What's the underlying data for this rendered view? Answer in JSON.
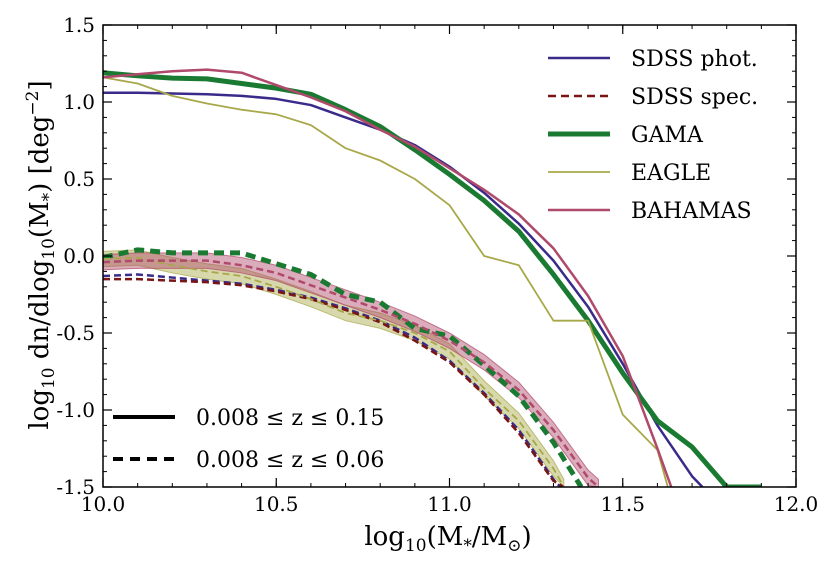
{
  "chart_data": {
    "type": "line",
    "title": "",
    "xlabel": "log10(M*/M⊙)",
    "ylabel": "log10 dn/dlog10(M*) [deg^-2]",
    "xlim": [
      10.0,
      12.0
    ],
    "ylim": [
      -1.5,
      1.5
    ],
    "xticks": [
      10.0,
      10.5,
      11.0,
      11.5,
      12.0
    ],
    "xtick_labels": [
      "10.0",
      "10.5",
      "11.0",
      "11.5",
      "12.0"
    ],
    "yticks": [
      -1.5,
      -1.0,
      -0.5,
      0.0,
      0.5,
      1.0,
      1.5
    ],
    "ytick_labels": [
      "-1.5",
      "-1.0",
      "-0.5",
      "0.0",
      "0.5",
      "1.0",
      "1.5"
    ],
    "xlabel_parts": {
      "pre": "log",
      "sub": "10",
      "mid1": "(M",
      "sub2": "*",
      "mid2": "/M",
      "sub3": "⊙",
      "post": ")"
    },
    "ylabel_parts": {
      "pre": "log",
      "sub": "10",
      "mid": " dn/dlog",
      "sub2": "10",
      "mid2": "(M",
      "sub3": "*",
      "mid3": ") [deg",
      "sup": "−2",
      "post": "]"
    },
    "legend": {
      "placement": "top-right",
      "entries": [
        {
          "label": "SDSS phot.",
          "color": "#3a2a8a",
          "style": "solid",
          "weight": "normal"
        },
        {
          "label": "SDSS spec.",
          "color": "#7a1515",
          "style": "dashed",
          "weight": "normal"
        },
        {
          "label": "GAMA",
          "color": "#1a7a32",
          "style": "solid",
          "weight": "thick"
        },
        {
          "label": "EAGLE",
          "color": "#a8a84a",
          "style": "solid",
          "weight": "thin"
        },
        {
          "label": "BAHAMAS",
          "color": "#b04a6a",
          "style": "solid",
          "weight": "normal"
        }
      ]
    },
    "style_legend": {
      "placement": "bottom-left",
      "entries": [
        {
          "label": "0.008 ≤ z ≤ 0.15",
          "style": "solid"
        },
        {
          "label": "0.008 ≤ z ≤ 0.06",
          "style": "dashed"
        }
      ]
    },
    "series": [
      {
        "name": "SDSS phot.",
        "sample": "0.008 ≤ z ≤ 0.15",
        "color": "#3a2a8a",
        "style": "solid",
        "weight": "normal",
        "x": [
          10.0,
          10.1,
          10.2,
          10.3,
          10.4,
          10.5,
          10.6,
          10.7,
          10.8,
          10.9,
          11.0,
          11.1,
          11.2,
          11.3,
          11.4,
          11.5,
          11.6,
          11.7,
          11.73
        ],
        "y": [
          1.06,
          1.06,
          1.055,
          1.05,
          1.04,
          1.02,
          0.98,
          0.9,
          0.82,
          0.72,
          0.58,
          0.41,
          0.21,
          -0.03,
          -0.33,
          -0.7,
          -1.1,
          -1.43,
          -1.5
        ]
      },
      {
        "name": "GAMA",
        "sample": "0.008 ≤ z ≤ 0.15",
        "color": "#1a7a32",
        "style": "solid",
        "weight": "thick",
        "x": [
          10.0,
          10.1,
          10.2,
          10.3,
          10.4,
          10.5,
          10.6,
          10.7,
          10.8,
          10.9,
          11.0,
          11.1,
          11.2,
          11.3,
          11.4,
          11.5,
          11.6,
          11.7,
          11.8,
          11.9
        ],
        "y": [
          1.19,
          1.17,
          1.155,
          1.15,
          1.12,
          1.09,
          1.05,
          0.95,
          0.84,
          0.69,
          0.53,
          0.36,
          0.16,
          -0.12,
          -0.42,
          -0.76,
          -1.07,
          -1.24,
          -1.5,
          -1.5
        ]
      },
      {
        "name": "EAGLE",
        "sample": "0.008 ≤ z ≤ 0.15",
        "color": "#a8a84a",
        "style": "solid",
        "weight": "thin",
        "x": [
          10.0,
          10.1,
          10.2,
          10.3,
          10.4,
          10.5,
          10.6,
          10.7,
          10.8,
          10.9,
          11.0,
          11.1,
          11.2,
          11.3,
          11.4,
          11.5,
          11.6,
          11.63
        ],
        "y": [
          1.16,
          1.12,
          1.04,
          0.99,
          0.95,
          0.92,
          0.85,
          0.7,
          0.62,
          0.5,
          0.33,
          0.0,
          -0.06,
          -0.42,
          -0.42,
          -1.03,
          -1.26,
          -1.5
        ]
      },
      {
        "name": "BAHAMAS",
        "sample": "0.008 ≤ z ≤ 0.15",
        "color": "#b04a6a",
        "style": "solid",
        "weight": "normal",
        "x": [
          10.0,
          10.1,
          10.2,
          10.3,
          10.4,
          10.5,
          10.6,
          10.7,
          10.8,
          10.9,
          11.0,
          11.1,
          11.2,
          11.3,
          11.4,
          11.5,
          11.6,
          11.64
        ],
        "y": [
          1.16,
          1.18,
          1.2,
          1.21,
          1.19,
          1.11,
          1.03,
          0.94,
          0.82,
          0.71,
          0.57,
          0.43,
          0.27,
          0.05,
          -0.26,
          -0.65,
          -1.25,
          -1.5
        ]
      },
      {
        "name": "SDSS phot.",
        "sample": "0.008 ≤ z ≤ 0.06",
        "color": "#3a2a8a",
        "style": "dashed",
        "weight": "normal",
        "x": [
          10.0,
          10.1,
          10.2,
          10.3,
          10.4,
          10.5,
          10.6,
          10.7,
          10.8,
          10.9,
          11.0,
          11.1,
          11.2,
          11.3,
          11.32
        ],
        "y": [
          -0.13,
          -0.12,
          -0.14,
          -0.16,
          -0.18,
          -0.22,
          -0.27,
          -0.34,
          -0.42,
          -0.53,
          -0.68,
          -0.89,
          -1.13,
          -1.45,
          -1.5
        ]
      },
      {
        "name": "SDSS spec.",
        "sample": "0.008 ≤ z ≤ 0.06",
        "color": "#7a1515",
        "style": "dashed",
        "weight": "normal",
        "x": [
          10.0,
          10.1,
          10.2,
          10.3,
          10.4,
          10.5,
          10.6,
          10.7,
          10.8,
          10.9,
          11.0,
          11.1,
          11.2,
          11.3,
          11.33
        ],
        "y": [
          -0.15,
          -0.15,
          -0.16,
          -0.17,
          -0.19,
          -0.23,
          -0.28,
          -0.35,
          -0.43,
          -0.55,
          -0.69,
          -0.9,
          -1.15,
          -1.46,
          -1.5
        ]
      },
      {
        "name": "GAMA",
        "sample": "0.008 ≤ z ≤ 0.06",
        "color": "#1a7a32",
        "style": "dashed",
        "weight": "thick",
        "x": [
          10.0,
          10.1,
          10.2,
          10.3,
          10.4,
          10.5,
          10.6,
          10.7,
          10.8,
          10.9,
          11.0,
          11.1,
          11.2,
          11.3,
          11.38
        ],
        "y": [
          -0.01,
          0.04,
          0.02,
          0.02,
          0.02,
          -0.05,
          -0.12,
          -0.25,
          -0.3,
          -0.47,
          -0.52,
          -0.71,
          -0.91,
          -1.21,
          -1.5
        ]
      },
      {
        "name": "EAGLE",
        "sample": "0.008 ≤ z ≤ 0.06",
        "color": "#a8a84a",
        "style": "dashed",
        "weight": "thin",
        "x": [
          10.0,
          10.1,
          10.2,
          10.3,
          10.4,
          10.5,
          10.6,
          10.7,
          10.8,
          10.9,
          11.0,
          11.1,
          11.2,
          11.3,
          11.33
        ],
        "y": [
          -0.02,
          -0.01,
          -0.06,
          -0.1,
          -0.13,
          -0.2,
          -0.28,
          -0.37,
          -0.42,
          -0.5,
          -0.62,
          -0.86,
          -1.07,
          -1.38,
          -1.5
        ],
        "band": 0.05
      },
      {
        "name": "BAHAMAS",
        "sample": "0.008 ≤ z ≤ 0.06",
        "color": "#b04a6a",
        "style": "dashed",
        "weight": "normal",
        "x": [
          10.0,
          10.1,
          10.2,
          10.3,
          10.4,
          10.5,
          10.6,
          10.7,
          10.8,
          10.9,
          11.0,
          11.1,
          11.2,
          11.3,
          11.4,
          11.43
        ],
        "y": [
          -0.04,
          -0.03,
          -0.03,
          -0.03,
          -0.06,
          -0.11,
          -0.19,
          -0.27,
          -0.35,
          -0.44,
          -0.55,
          -0.69,
          -0.87,
          -1.13,
          -1.44,
          -1.5
        ],
        "band": 0.05
      }
    ]
  }
}
